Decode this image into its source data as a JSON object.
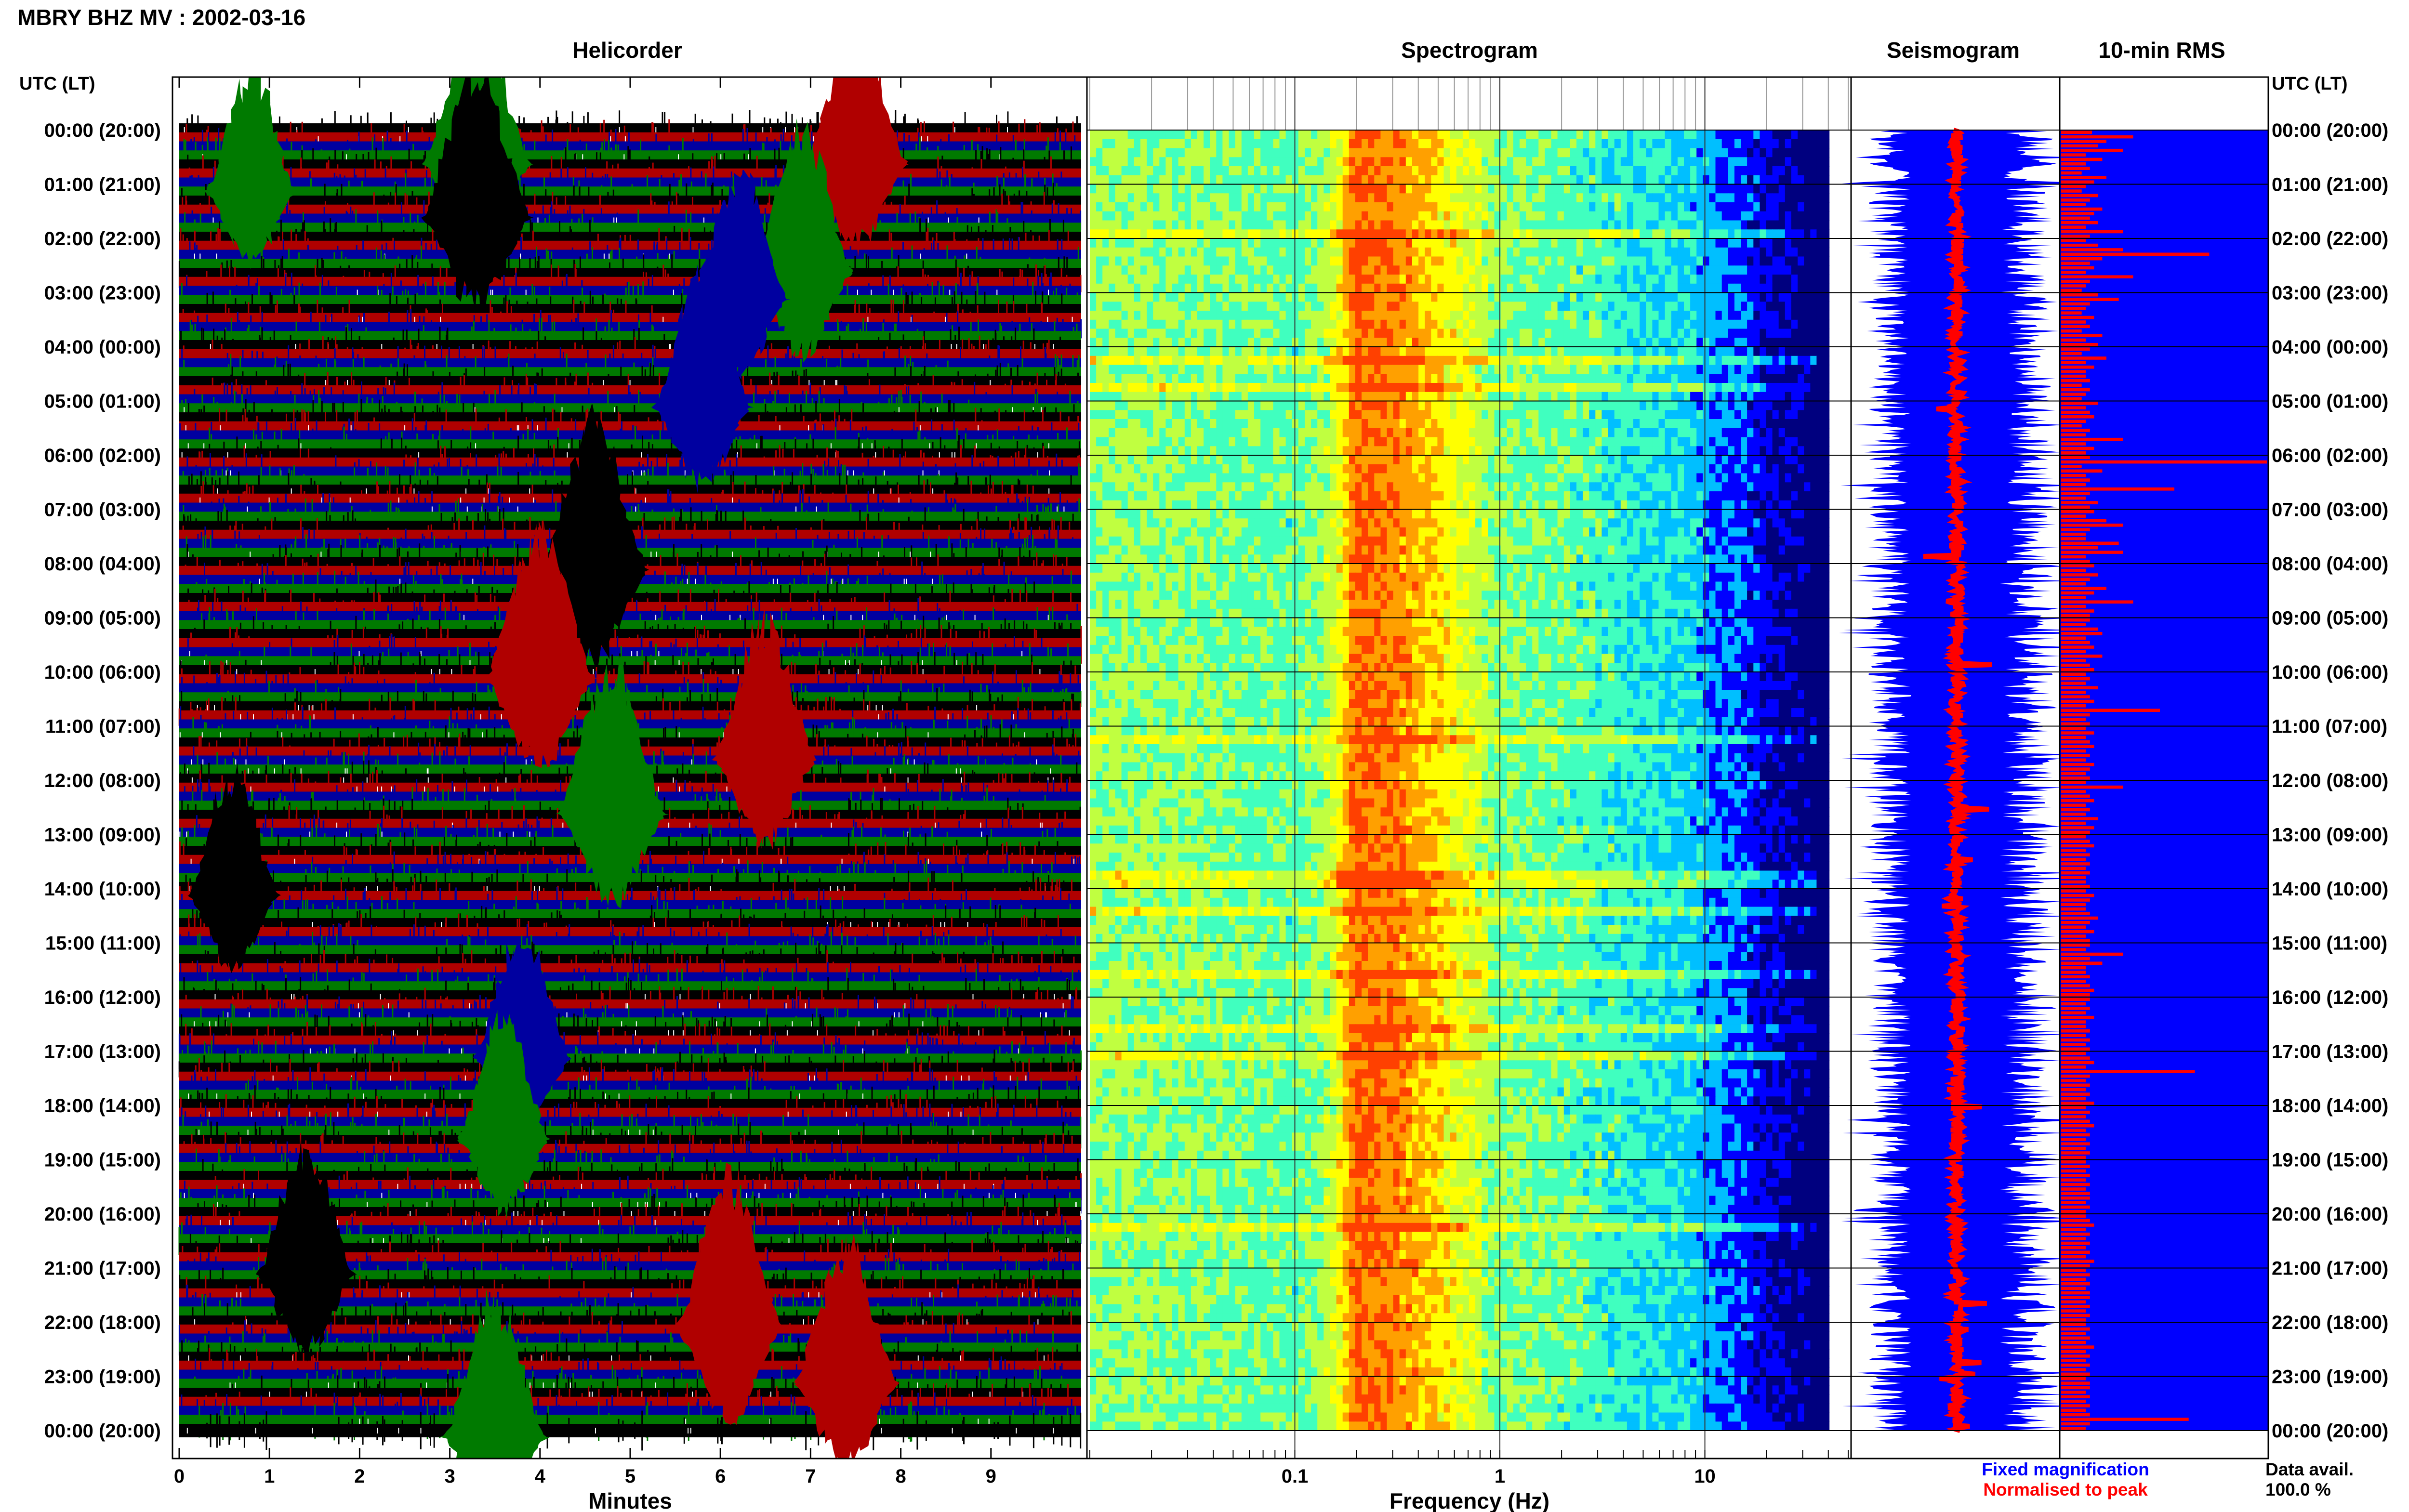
{
  "chart_data": {
    "type": "multi-panel-seismic",
    "title": "MBRY BHZ MV : 2002-03-16",
    "time_axis_label": "UTC (LT)",
    "time_ticks_left": [
      "00:00 (20:00)",
      "01:00 (21:00)",
      "02:00 (22:00)",
      "03:00 (23:00)",
      "04:00 (00:00)",
      "05:00 (01:00)",
      "06:00 (02:00)",
      "07:00 (03:00)",
      "08:00 (04:00)",
      "09:00 (05:00)",
      "10:00 (06:00)",
      "11:00 (07:00)",
      "12:00 (08:00)",
      "13:00 (09:00)",
      "14:00 (10:00)",
      "15:00 (11:00)",
      "16:00 (12:00)",
      "17:00 (13:00)",
      "18:00 (14:00)",
      "19:00 (15:00)",
      "20:00 (16:00)",
      "21:00 (17:00)",
      "22:00 (18:00)",
      "23:00 (19:00)",
      "00:00 (20:00)"
    ],
    "panels": {
      "helicorder": {
        "title": "Helicorder",
        "xlabel": "Minutes",
        "xticks": [
          "0",
          "1",
          "2",
          "3",
          "4",
          "5",
          "6",
          "7",
          "8",
          "9"
        ],
        "xlim": [
          0,
          10
        ],
        "trace_colors": [
          "#000000",
          "#b00000",
          "#0000a0",
          "#007a00"
        ],
        "traces_per_hour": 6,
        "event_bursts": [
          {
            "hour": 0.0,
            "minute": 3.3,
            "color": "#007a00",
            "strength": 1.0
          },
          {
            "hour": 0.0,
            "minute": 7.5,
            "color": "#b00000",
            "strength": 0.9
          },
          {
            "hour": 0.5,
            "minute": 0.8,
            "color": "#007a00",
            "strength": 0.7
          },
          {
            "hour": 1.0,
            "minute": 3.3,
            "color": "#000000",
            "strength": 1.0
          },
          {
            "hour": 2.0,
            "minute": 6.9,
            "color": "#007a00",
            "strength": 0.9
          },
          {
            "hour": 2.5,
            "minute": 6.2,
            "color": "#0000a0",
            "strength": 0.8
          },
          {
            "hour": 4.5,
            "minute": 5.8,
            "color": "#0000a0",
            "strength": 0.8
          },
          {
            "hour": 7.5,
            "minute": 4.6,
            "color": "#000000",
            "strength": 1.0
          },
          {
            "hour": 9.5,
            "minute": 4.0,
            "color": "#b00000",
            "strength": 1.0
          },
          {
            "hour": 11.0,
            "minute": 6.5,
            "color": "#b00000",
            "strength": 0.9
          },
          {
            "hour": 12.0,
            "minute": 4.8,
            "color": "#007a00",
            "strength": 1.0
          },
          {
            "hour": 13.5,
            "minute": 0.6,
            "color": "#000000",
            "strength": 0.7
          },
          {
            "hour": 16.5,
            "minute": 3.8,
            "color": "#0000a0",
            "strength": 0.8
          },
          {
            "hour": 18.0,
            "minute": 3.6,
            "color": "#007a00",
            "strength": 0.7
          },
          {
            "hour": 20.5,
            "minute": 1.4,
            "color": "#000000",
            "strength": 0.8
          },
          {
            "hour": 21.5,
            "minute": 6.1,
            "color": "#b00000",
            "strength": 1.0
          },
          {
            "hour": 22.5,
            "minute": 7.4,
            "color": "#b00000",
            "strength": 0.9
          },
          {
            "hour": 23.5,
            "minute": 3.5,
            "color": "#007a00",
            "strength": 0.9
          }
        ]
      },
      "spectrogram": {
        "title": "Spectrogram",
        "xlabel": "Frequency (Hz)",
        "xscale": "log",
        "xlim": [
          0.01,
          50
        ],
        "xticks": [
          "0.1",
          "1",
          "10"
        ],
        "colormap": [
          "#00007f",
          "#0000ff",
          "#00bfff",
          "#40ffbf",
          "#c0ff40",
          "#ffff00",
          "#ffa000",
          "#ff4000",
          "#c00000"
        ],
        "intensity_profile": [
          {
            "freq": 0.02,
            "value": 0.52
          },
          {
            "freq": 0.1,
            "value": 0.46
          },
          {
            "freq": 0.15,
            "value": 0.56
          },
          {
            "freq": 0.2,
            "value": 0.9
          },
          {
            "freq": 0.35,
            "value": 0.82
          },
          {
            "freq": 0.7,
            "value": 0.62
          },
          {
            "freq": 1.0,
            "value": 0.5
          },
          {
            "freq": 3.0,
            "value": 0.44
          },
          {
            "freq": 8.0,
            "value": 0.35
          },
          {
            "freq": 15.0,
            "value": 0.22
          },
          {
            "freq": 25.0,
            "value": 0.1
          },
          {
            "freq": 35.0,
            "value": 0.03
          }
        ]
      },
      "seismogram": {
        "title": "Seismogram",
        "legend": [
          "Fixed magnification",
          "Normalised to peak"
        ],
        "legend_colors": [
          "#0000ff",
          "#ff0000"
        ]
      },
      "rms": {
        "title": "10-min RMS",
        "bar_color": "#ff0000",
        "background": "#0000ff",
        "values": [
          0.15,
          0.35,
          0.22,
          0.18,
          0.3,
          0.12,
          0.2,
          0.12,
          0.14,
          0.1,
          0.22,
          0.16,
          0.12,
          0.1,
          0.18,
          0.14,
          0.12,
          0.2,
          0.16,
          0.14,
          0.18,
          0.12,
          0.3,
          0.14,
          0.12,
          0.18,
          0.3,
          0.72,
          0.2,
          0.14,
          0.16,
          0.12,
          0.35,
          0.14,
          0.12,
          0.1,
          0.18,
          0.28,
          0.14,
          0.12,
          0.1,
          0.16,
          0.12,
          0.14,
          0.1,
          0.2,
          0.12,
          0.18,
          0.14,
          0.1,
          0.22,
          0.12,
          0.16,
          0.12,
          0.12,
          0.14,
          0.1,
          0.14,
          0.12,
          0.1,
          0.18,
          0.12,
          0.14,
          0.16,
          0.12,
          0.1,
          0.14,
          0.12,
          0.3,
          0.12,
          0.16,
          0.12,
          0.14,
          1.0,
          0.1,
          0.2,
          0.12,
          0.14,
          0.12,
          0.55,
          0.14,
          0.12,
          0.18,
          0.14,
          0.16,
          0.12,
          0.22,
          0.3,
          0.14,
          0.12,
          0.12,
          0.28,
          0.18,
          0.3,
          0.12,
          0.14,
          0.16,
          0.12,
          0.18,
          0.14,
          0.12,
          0.22,
          0.16,
          0.12,
          0.35,
          0.12,
          0.16,
          0.14,
          0.14,
          0.12,
          0.18,
          0.2,
          0.12,
          0.14,
          0.16,
          0.12,
          0.2,
          0.12,
          0.14,
          0.16,
          0.12,
          0.14,
          0.12,
          0.18,
          0.12,
          0.14,
          0.16,
          0.12,
          0.48,
          0.14,
          0.12,
          0.14,
          0.12,
          0.16,
          0.12,
          0.14,
          0.16,
          0.12,
          0.14,
          0.12,
          0.16,
          0.14,
          0.12,
          0.14,
          0.12,
          0.3,
          0.12,
          0.14,
          0.16,
          0.12,
          0.14,
          0.12,
          0.18,
          0.12,
          0.16,
          0.14,
          0.12,
          0.14,
          0.16,
          0.12,
          0.14,
          0.12,
          0.14,
          0.12,
          0.14,
          0.12,
          0.12,
          0.14,
          0.12,
          0.16,
          0.14,
          0.12,
          0.12,
          0.14,
          0.18,
          0.14,
          0.12,
          0.16,
          0.12,
          0.14,
          0.14,
          0.12,
          0.3,
          0.14,
          0.2,
          0.12,
          0.12,
          0.14,
          0.12,
          0.14,
          0.16,
          0.14,
          0.14,
          0.12,
          0.14,
          0.12,
          0.16,
          0.12,
          0.12,
          0.14,
          0.12,
          0.14,
          0.12,
          0.14,
          0.12,
          0.14,
          0.16,
          0.12,
          0.65,
          0.14,
          0.12,
          0.14,
          0.12,
          0.14,
          0.12,
          0.16,
          0.12,
          0.14,
          0.12,
          0.14,
          0.16,
          0.12,
          0.14,
          0.12,
          0.14,
          0.12,
          0.14,
          0.12,
          0.12,
          0.14,
          0.12,
          0.14,
          0.12,
          0.14,
          0.12,
          0.14,
          0.14,
          0.12,
          0.14,
          0.12,
          0.12,
          0.14,
          0.16,
          0.12,
          0.14,
          0.12,
          0.14,
          0.12,
          0.14,
          0.12,
          0.16,
          0.14,
          0.12,
          0.14,
          0.12,
          0.14,
          0.12,
          0.14,
          0.14,
          0.12,
          0.14,
          0.12,
          0.14,
          0.12,
          0.12,
          0.14,
          0.12,
          0.14,
          0.12,
          0.16,
          0.12,
          0.14,
          0.12,
          0.14,
          0.12,
          0.14,
          0.12,
          0.14,
          0.14,
          0.12,
          0.14,
          0.12,
          0.14,
          0.12,
          0.14,
          0.62,
          0.14,
          0.12
        ]
      }
    },
    "data_availability_label": "Data avail.",
    "data_availability_value": "100.0 %"
  }
}
